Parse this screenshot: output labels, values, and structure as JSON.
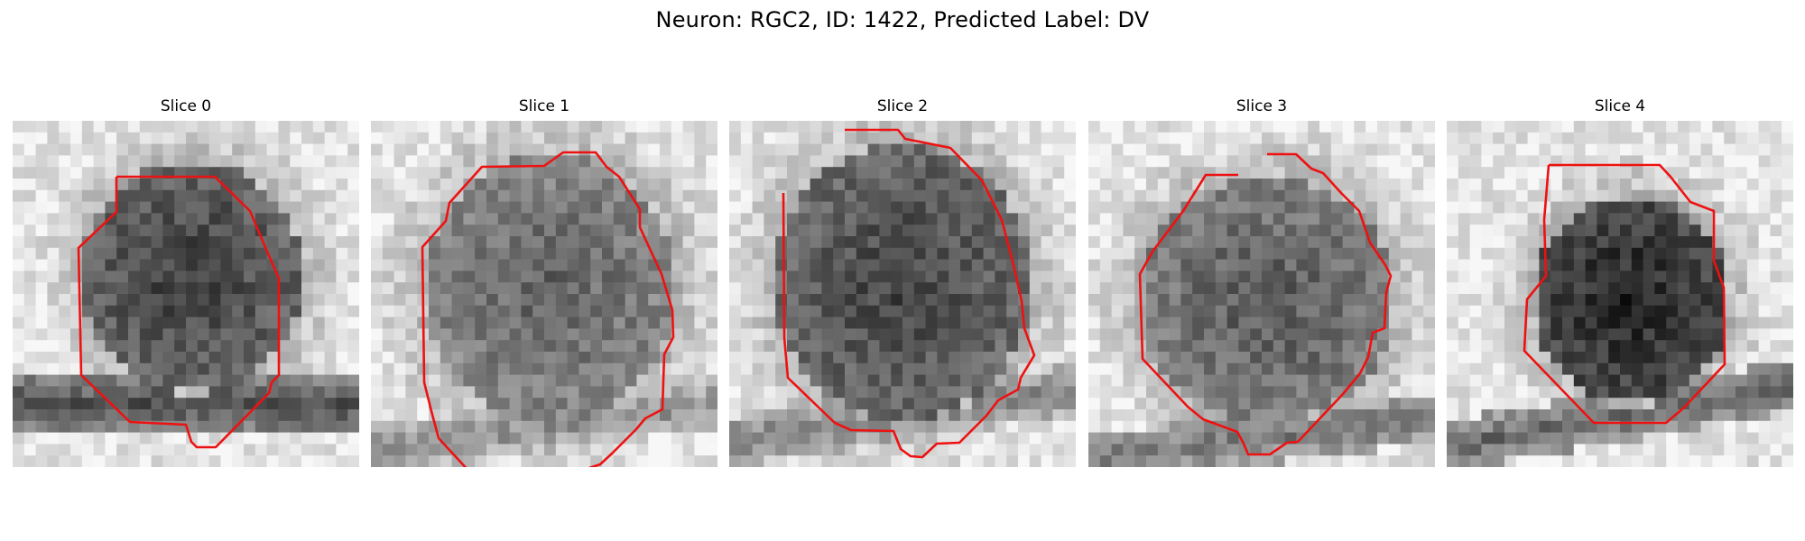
{
  "figure": {
    "title": "Neuron: RGC2, ID: 1422, Predicted Label: DV"
  },
  "panels": [
    {
      "title": "Slice 0"
    },
    {
      "title": "Slice 1"
    },
    {
      "title": "Slice 2"
    },
    {
      "title": "Slice 3"
    },
    {
      "title": "Slice 4"
    }
  ],
  "colors": {
    "contour": "#ee1111",
    "background": "#ffffff"
  }
}
